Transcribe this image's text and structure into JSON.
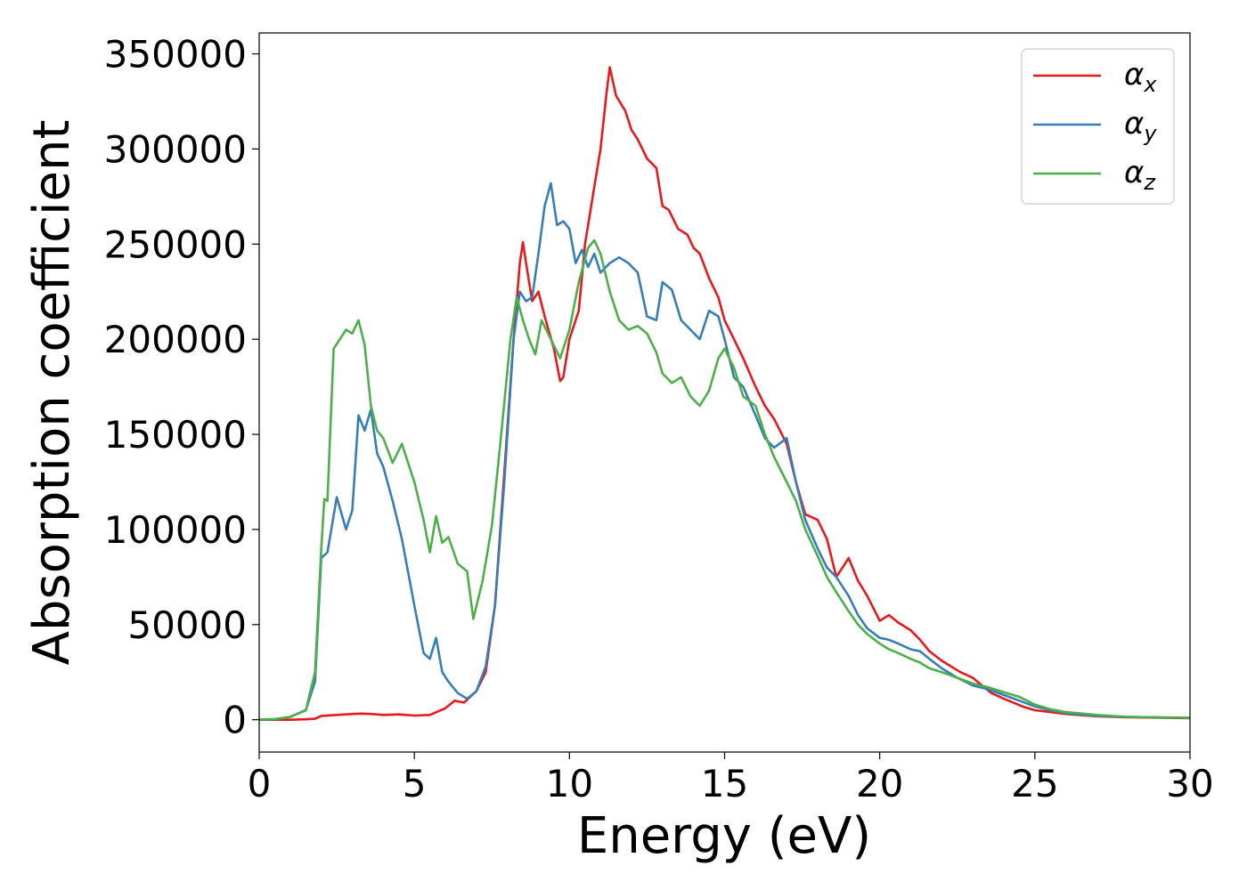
{
  "chart_data": {
    "type": "line",
    "title": "",
    "xlabel": "Energy (eV)",
    "ylabel": "Absorption coefficient",
    "xlim": [
      0,
      30
    ],
    "ylim": [
      -17000,
      361000
    ],
    "xticks": [
      0,
      5,
      10,
      15,
      20,
      25,
      30
    ],
    "yticks": [
      0,
      50000,
      100000,
      150000,
      200000,
      250000,
      300000,
      350000
    ],
    "grid": false,
    "legend_position": "top-right",
    "series": [
      {
        "name": "α",
        "subscript": "x",
        "color": "#e41a1c",
        "x": [
          0,
          1,
          1.5,
          1.8,
          2,
          2.5,
          3,
          3.3,
          3.6,
          4,
          4.5,
          5,
          5.5,
          6,
          6.3,
          6.6,
          7,
          7.3,
          7.6,
          7.9,
          8.2,
          8.4,
          8.5,
          8.6,
          8.8,
          9,
          9.2,
          9.5,
          9.7,
          9.8,
          10,
          10.3,
          10.5,
          10.8,
          11,
          11.2,
          11.3,
          11.5,
          11.8,
          12,
          12.2,
          12.5,
          12.8,
          13,
          13.2,
          13.5,
          13.8,
          14,
          14.2,
          14.5,
          14.8,
          15,
          15.3,
          15.6,
          16,
          16.3,
          16.6,
          17,
          17.3,
          17.6,
          18,
          18.3,
          18.6,
          18.8,
          19,
          19.3,
          19.6,
          20,
          20.3,
          20.6,
          21,
          21.3,
          21.6,
          22,
          22.3,
          22.6,
          23,
          23.3,
          23.6,
          24,
          24.3,
          24.6,
          25,
          25.5,
          26,
          27,
          28,
          29,
          30
        ],
        "y": [
          0,
          0,
          200,
          500,
          2000,
          2500,
          3000,
          3200,
          3000,
          2500,
          2800,
          2200,
          2500,
          6000,
          10000,
          9000,
          15000,
          25000,
          60000,
          130000,
          200000,
          240000,
          251000,
          240000,
          220000,
          225000,
          212000,
          195000,
          178000,
          180000,
          200000,
          215000,
          250000,
          280000,
          300000,
          330000,
          343000,
          328000,
          320000,
          310000,
          305000,
          295000,
          290000,
          270000,
          268000,
          258000,
          255000,
          248000,
          245000,
          232000,
          222000,
          210000,
          200000,
          190000,
          175000,
          165000,
          158000,
          145000,
          125000,
          108000,
          105000,
          95000,
          75000,
          80000,
          85000,
          73000,
          65000,
          52000,
          55000,
          51000,
          47000,
          42000,
          36000,
          31000,
          28000,
          25000,
          22000,
          18000,
          14000,
          11000,
          9000,
          7000,
          5000,
          4000,
          3000,
          1800,
          1300,
          1000,
          800
        ]
      },
      {
        "name": "α",
        "subscript": "y",
        "color": "#377eb8",
        "x": [
          0,
          0.5,
          1,
          1.5,
          1.8,
          2,
          2.2,
          2.5,
          2.8,
          3,
          3.2,
          3.4,
          3.6,
          3.8,
          4,
          4.3,
          4.6,
          5,
          5.3,
          5.5,
          5.7,
          5.9,
          6.1,
          6.4,
          6.7,
          7,
          7.3,
          7.6,
          7.9,
          8.2,
          8.4,
          8.6,
          8.8,
          9,
          9.2,
          9.4,
          9.6,
          9.8,
          10,
          10.2,
          10.4,
          10.6,
          10.8,
          11,
          11.3,
          11.6,
          11.9,
          12.2,
          12.5,
          12.8,
          13,
          13.3,
          13.6,
          13.9,
          14.2,
          14.5,
          14.8,
          15,
          15.3,
          15.6,
          16,
          16.3,
          16.6,
          17,
          17.3,
          17.6,
          18,
          18.3,
          18.6,
          19,
          19.3,
          19.6,
          20,
          20.3,
          20.6,
          21,
          21.3,
          21.6,
          22,
          22.5,
          23,
          23.5,
          24,
          24.5,
          25,
          25.5,
          26,
          27,
          28,
          29,
          30
        ],
        "y": [
          0,
          300,
          1500,
          5000,
          20000,
          85000,
          88000,
          117000,
          100000,
          110000,
          160000,
          152000,
          163000,
          140000,
          133000,
          115000,
          95000,
          60000,
          35000,
          32000,
          43000,
          25000,
          20000,
          14000,
          11000,
          15000,
          28000,
          60000,
          125000,
          200000,
          225000,
          220000,
          222000,
          245000,
          270000,
          282000,
          260000,
          262000,
          258000,
          240000,
          247000,
          238000,
          245000,
          235000,
          240000,
          243000,
          240000,
          235000,
          212000,
          210000,
          230000,
          226000,
          210000,
          205000,
          200000,
          215000,
          212000,
          200000,
          180000,
          175000,
          160000,
          148000,
          143000,
          148000,
          125000,
          105000,
          90000,
          80000,
          75000,
          65000,
          55000,
          48000,
          43000,
          42000,
          40000,
          37000,
          36000,
          32000,
          27000,
          22000,
          18000,
          16000,
          13000,
          10000,
          7000,
          5000,
          3500,
          2000,
          1500,
          1200,
          1000
        ]
      },
      {
        "name": "α",
        "subscript": "z",
        "color": "#4daf4a",
        "x": [
          0,
          0.5,
          1,
          1.5,
          1.8,
          2,
          2.1,
          2.2,
          2.4,
          2.6,
          2.8,
          3,
          3.2,
          3.4,
          3.6,
          3.8,
          4,
          4.3,
          4.6,
          5,
          5.3,
          5.5,
          5.7,
          5.9,
          6.1,
          6.4,
          6.7,
          6.9,
          7.2,
          7.5,
          7.8,
          8.1,
          8.3,
          8.5,
          8.7,
          8.9,
          9.1,
          9.4,
          9.7,
          10,
          10.3,
          10.6,
          10.8,
          11,
          11.3,
          11.6,
          11.9,
          12.2,
          12.5,
          12.8,
          13,
          13.3,
          13.6,
          13.9,
          14.2,
          14.5,
          14.8,
          15,
          15.3,
          15.6,
          16,
          16.3,
          16.6,
          17,
          17.3,
          17.6,
          18,
          18.3,
          18.6,
          19,
          19.3,
          19.6,
          20,
          20.3,
          20.6,
          21,
          21.3,
          21.6,
          22,
          22.5,
          23,
          23.5,
          24,
          24.5,
          25,
          25.5,
          26,
          27,
          28,
          29,
          30
        ],
        "y": [
          0,
          300,
          1500,
          5000,
          25000,
          90000,
          116000,
          115000,
          195000,
          200000,
          205000,
          203000,
          210000,
          197000,
          165000,
          152000,
          148000,
          135000,
          145000,
          125000,
          105000,
          88000,
          107000,
          93000,
          96000,
          82000,
          78000,
          53000,
          73000,
          102000,
          150000,
          200000,
          222000,
          210000,
          200000,
          192000,
          210000,
          200000,
          190000,
          205000,
          230000,
          248000,
          252000,
          245000,
          225000,
          210000,
          205000,
          207000,
          203000,
          193000,
          182000,
          177000,
          180000,
          170000,
          165000,
          173000,
          190000,
          195000,
          185000,
          170000,
          165000,
          150000,
          138000,
          125000,
          115000,
          100000,
          86000,
          75000,
          67000,
          57000,
          50000,
          45000,
          40000,
          37000,
          35000,
          32000,
          30000,
          27000,
          25000,
          22000,
          19000,
          17000,
          14500,
          12000,
          8000,
          5500,
          4000,
          2500,
          1500,
          1200,
          1000
        ]
      }
    ]
  }
}
